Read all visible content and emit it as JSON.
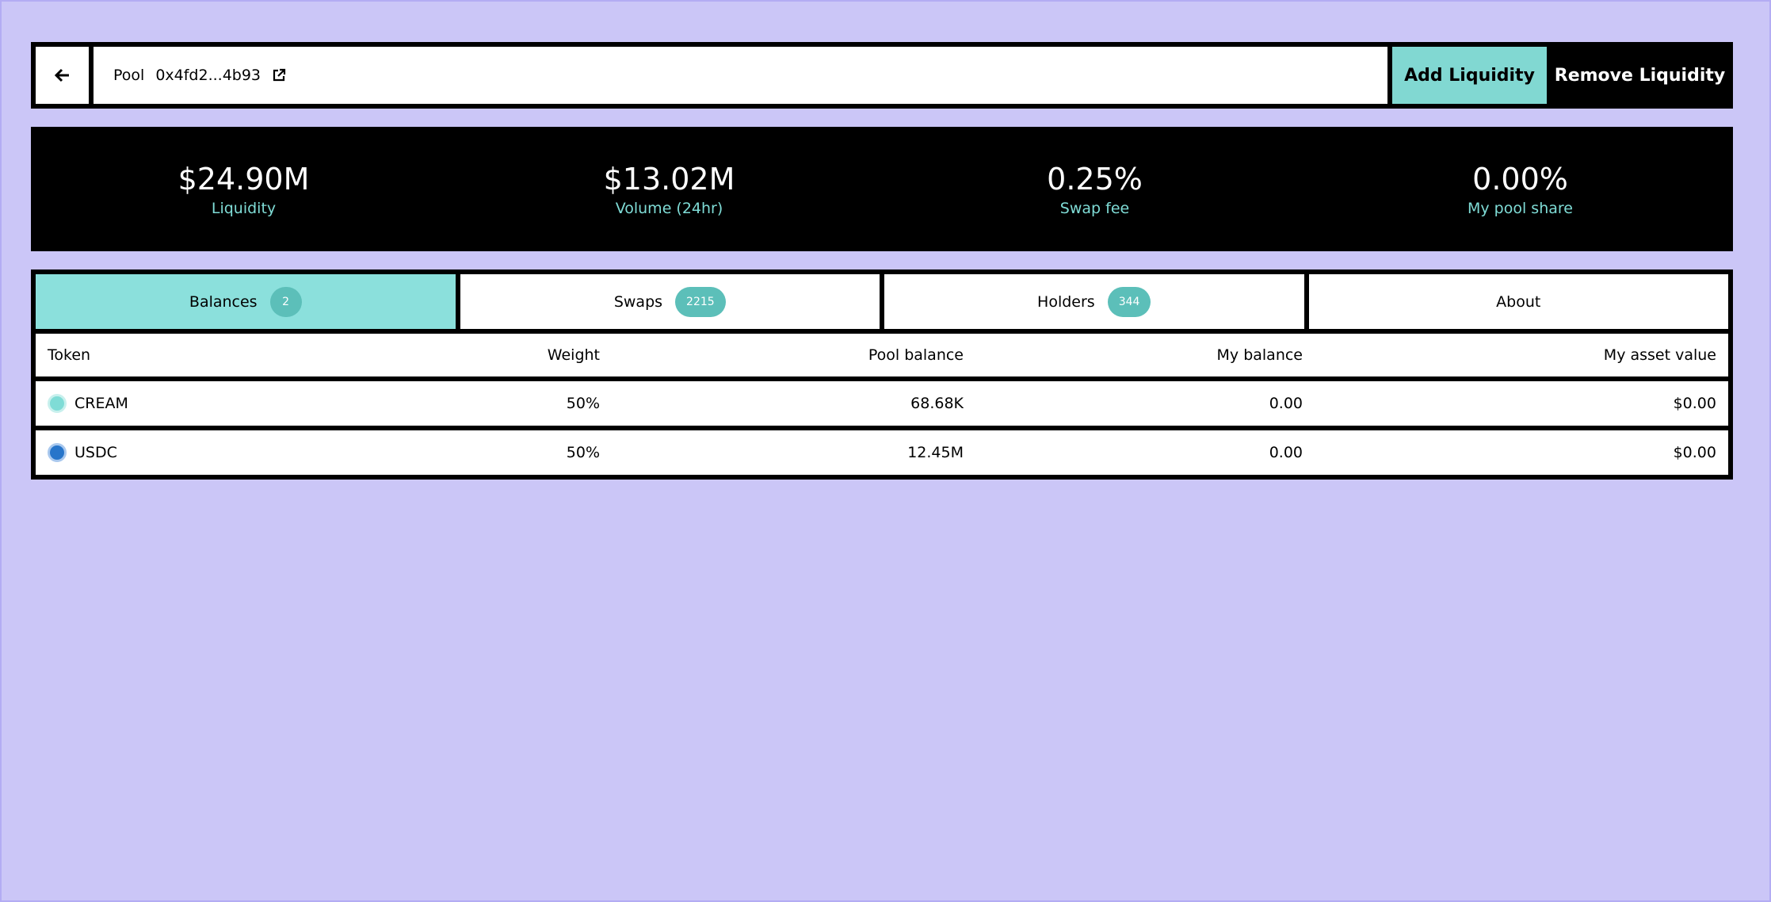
{
  "header": {
    "pool_label": "Pool",
    "address": "0x4fd2...4b93",
    "add_button": "Add Liquidity",
    "remove_button": "Remove Liquidity"
  },
  "stats": [
    {
      "value": "$24.90M",
      "label": "Liquidity"
    },
    {
      "value": "$13.02M",
      "label": "Volume (24hr)"
    },
    {
      "value": "0.25%",
      "label": "Swap fee"
    },
    {
      "value": "0.00%",
      "label": "My pool share"
    }
  ],
  "tabs": [
    {
      "label": "Balances",
      "count": "2"
    },
    {
      "label": "Swaps",
      "count": "2215"
    },
    {
      "label": "Holders",
      "count": "344"
    },
    {
      "label": "About"
    }
  ],
  "table": {
    "columns": [
      "Token",
      "Weight",
      "Pool balance",
      "My balance",
      "My asset value"
    ],
    "rows": [
      [
        "CREAM",
        "50%",
        "68.68K",
        "0.00",
        "$0.00"
      ],
      [
        "USDC",
        "50%",
        "12.45M",
        "0.00",
        "$0.00"
      ]
    ]
  }
}
